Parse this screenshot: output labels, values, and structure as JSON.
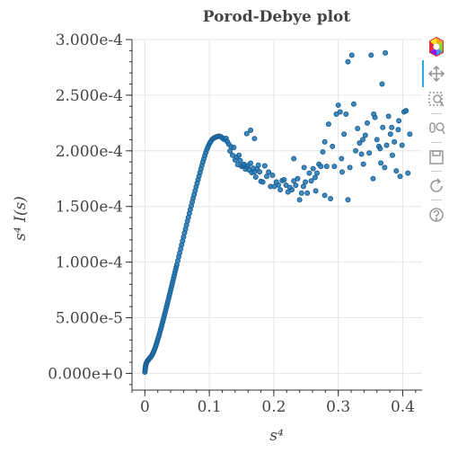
{
  "chart_data": {
    "type": "scatter",
    "title": "Porod-Debye plot",
    "xlabel": "s⁴",
    "ylabel": "s⁴ I(s)",
    "xlim": [
      -0.02,
      0.43
    ],
    "ylim": [
      -1.5e-05,
      0.0003
    ],
    "x_ticks": [
      {
        "value": 0,
        "label": "0"
      },
      {
        "value": 0.1,
        "label": "0.1"
      },
      {
        "value": 0.2,
        "label": "0.2"
      },
      {
        "value": 0.3,
        "label": "0.3"
      },
      {
        "value": 0.4,
        "label": "0.4"
      }
    ],
    "y_ticks": [
      {
        "value": 0,
        "label": "0.000e+0"
      },
      {
        "value": 5e-05,
        "label": "5.000e-5"
      },
      {
        "value": 0.0001,
        "label": "1.000e-4"
      },
      {
        "value": 0.00015,
        "label": "1.500e-4"
      },
      {
        "value": 0.0002,
        "label": "2.000e-4"
      },
      {
        "value": 0.00025,
        "label": "2.500e-4"
      },
      {
        "value": 0.0003,
        "label": "3.000e-4"
      }
    ],
    "grid": true,
    "marker_color": "#1f77b4",
    "series": [
      {
        "x": [
          0.0,
          0.0002,
          0.0005,
          0.0008,
          0.0012,
          0.0016,
          0.0021,
          0.0027,
          0.0033,
          0.004,
          0.0048,
          0.0056,
          0.0065,
          0.0075,
          0.0085,
          0.0095,
          0.0105,
          0.0115,
          0.0125,
          0.0135,
          0.0145,
          0.0155,
          0.0165,
          0.0175,
          0.0185,
          0.0195,
          0.0205,
          0.0215,
          0.0225,
          0.0235,
          0.0245,
          0.0255,
          0.0265,
          0.0275,
          0.0285,
          0.0295,
          0.0305,
          0.0315,
          0.0325,
          0.0335,
          0.0345,
          0.0355,
          0.0365,
          0.0375,
          0.0385,
          0.0395,
          0.0405,
          0.0415,
          0.0425,
          0.0435,
          0.0445,
          0.0455,
          0.0465,
          0.0475,
          0.0485,
          0.0495,
          0.051,
          0.0525,
          0.054,
          0.0555,
          0.057,
          0.0585,
          0.06,
          0.0615,
          0.063,
          0.0645,
          0.066,
          0.0675,
          0.069,
          0.0705,
          0.072,
          0.0735,
          0.075,
          0.0765,
          0.078,
          0.0795,
          0.081,
          0.0825,
          0.084,
          0.0855,
          0.087,
          0.0885,
          0.09,
          0.0915,
          0.093,
          0.0945,
          0.096,
          0.0975,
          0.099,
          0.1005,
          0.102,
          0.104,
          0.106,
          0.108,
          0.11,
          0.112,
          0.114,
          0.116,
          0.118,
          0.12,
          0.122,
          0.124,
          0.126,
          0.128,
          0.13,
          0.132,
          0.134,
          0.136,
          0.138,
          0.14,
          0.142,
          0.144,
          0.146,
          0.148,
          0.15,
          0.152,
          0.154,
          0.156,
          0.158,
          0.16,
          0.162,
          0.164,
          0.166,
          0.168,
          0.17,
          0.172,
          0.174,
          0.176,
          0.178,
          0.18,
          0.183,
          0.186,
          0.189,
          0.192,
          0.195,
          0.198,
          0.201,
          0.204,
          0.207,
          0.21,
          0.213,
          0.216,
          0.219,
          0.222,
          0.225,
          0.228,
          0.231,
          0.234,
          0.237,
          0.24,
          0.243,
          0.246,
          0.249,
          0.252,
          0.255,
          0.258,
          0.261,
          0.264,
          0.267,
          0.27,
          0.273,
          0.276,
          0.279,
          0.282,
          0.285,
          0.288,
          0.291,
          0.294,
          0.297,
          0.3,
          0.303,
          0.306,
          0.309,
          0.312,
          0.315,
          0.318,
          0.321,
          0.324,
          0.327,
          0.33,
          0.333,
          0.336,
          0.339,
          0.342,
          0.345,
          0.348,
          0.351,
          0.354,
          0.357,
          0.36,
          0.363,
          0.366,
          0.369,
          0.372,
          0.375,
          0.378,
          0.381,
          0.384,
          0.387,
          0.39,
          0.393,
          0.396,
          0.399,
          0.402,
          0.405,
          0.408,
          0.411,
          0.164,
          0.158,
          0.17,
          0.231,
          0.247,
          0.265,
          0.279,
          0.305,
          0.315,
          0.338,
          0.355,
          0.365,
          0.368,
          0.373,
          0.383,
          0.394,
          0.405
        ],
        "y": [
          1.2e-06,
          2.5e-06,
          4e-06,
          5.5e-06,
          6.8e-06,
          8e-06,
          9e-06,
          9.8e-06,
          1.05e-05,
          1.12e-05,
          1.18e-05,
          1.24e-05,
          1.3e-05,
          1.37e-05,
          1.44e-05,
          1.52e-05,
          1.6e-05,
          1.7e-05,
          1.81e-05,
          1.94e-05,
          2.08e-05,
          2.24e-05,
          2.4e-05,
          2.58e-05,
          2.76e-05,
          2.95e-05,
          3.14e-05,
          3.34e-05,
          3.54e-05,
          3.75e-05,
          3.96e-05,
          4.17e-05,
          4.39e-05,
          4.61e-05,
          4.83e-05,
          5.05e-05,
          5.28e-05,
          5.5e-05,
          5.73e-05,
          5.96e-05,
          6.2e-05,
          6.43e-05,
          6.67e-05,
          6.9e-05,
          7.13e-05,
          7.37e-05,
          7.61e-05,
          7.85e-05,
          8.08e-05,
          8.32e-05,
          8.56e-05,
          8.8e-05,
          9.04e-05,
          9.28e-05,
          9.52e-05,
          9.76e-05,
          0.0001012,
          0.0001048,
          0.0001083,
          0.0001119,
          0.0001155,
          0.000119,
          0.0001226,
          0.0001262,
          0.0001297,
          0.0001333,
          0.0001368,
          0.0001403,
          0.0001438,
          0.0001473,
          0.0001507,
          0.0001541,
          0.0001575,
          0.0001609,
          0.0001642,
          0.0001676,
          0.0001709,
          0.0001741,
          0.0001774,
          0.0001806,
          0.0001838,
          0.0001869,
          0.00019,
          0.0001929,
          0.0001957,
          0.0001984,
          0.000201,
          0.000203,
          0.000205,
          0.0002068,
          0.0002082,
          0.00021,
          0.0002111,
          0.0002118,
          0.0002124,
          0.0002128,
          0.0002132,
          0.0002131,
          0.0002126,
          0.0002118,
          0.0002106,
          0.00021,
          0.0002112,
          0.0002082,
          0.000206,
          0.0001998,
          0.0002037,
          0.000196,
          0.000203,
          0.0001918,
          0.0001944,
          0.0001876,
          0.000196,
          0.0001912,
          0.000186,
          0.0001869,
          0.0001878,
          0.0001836,
          0.0001854,
          0.0001868,
          0.0001827,
          0.0001889,
          0.0001804,
          0.0001844,
          0.0001812,
          0.0001764,
          0.0001838,
          0.0001871,
          0.0001812,
          0.0001726,
          0.000172,
          0.0001865,
          0.000177,
          0.000181,
          0.0001679,
          0.000178,
          0.000168,
          0.0001721,
          0.0001694,
          0.000165,
          0.0001733,
          0.000174,
          0.0001692,
          0.000163,
          0.000167,
          0.000165,
          0.000173,
          0.000169,
          0.000175,
          0.000156,
          0.000162,
          0.000168,
          0.000172,
          0.000162,
          0.00018,
          0.000173,
          0.000184,
          0.000176,
          0.00018,
          0.000188,
          0.000186,
          0.000199,
          0.000208,
          0.000186,
          0.000224,
          0.000157,
          0.000204,
          0.000186,
          0.000233,
          0.000241,
          0.000235,
          0.000181,
          0.000215,
          0.000233,
          0.00028,
          0.000185,
          0.000286,
          0.000242,
          0.0002,
          0.00022,
          0.000207,
          0.000197,
          0.000188,
          0.000214,
          0.000225,
          0.000198,
          0.000286,
          0.000175,
          0.00023,
          0.00021,
          0.000204,
          0.000189,
          0.000221,
          0.000185,
          0.000205,
          0.000231,
          0.000215,
          0.000196,
          0.000208,
          0.000182,
          0.000219,
          0.000177,
          0.000205,
          0.000235,
          0.000236,
          0.00018,
          0.000215,
          0.0002185,
          0.0002155,
          0.000211,
          0.000193,
          0.000185,
          0.000164,
          0.00016,
          0.000193,
          0.000156,
          0.00021,
          0.000233,
          0.000202,
          0.00026,
          0.000288,
          0.000221,
          0.000227,
          0.000236
        ]
      }
    ]
  },
  "toolbar": {
    "active_color": "#26aae1",
    "icons": [
      "bokeh-logo-icon",
      "pan-icon",
      "box-zoom-icon",
      "wheel-zoom-icon",
      "save-icon",
      "reset-icon",
      "help-icon"
    ]
  }
}
